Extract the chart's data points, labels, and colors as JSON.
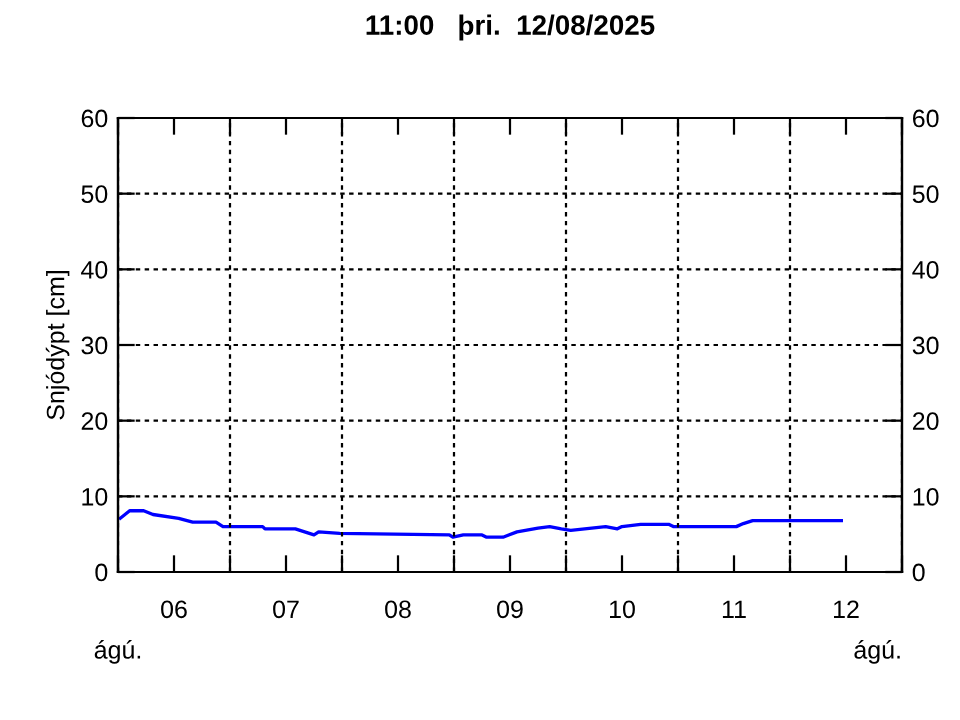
{
  "chart_data": {
    "type": "line",
    "title": "11:00   þri.  12/08/2025",
    "ylabel": "Snjódýpt [cm]",
    "annotations": [
      "ágú.",
      "ágú."
    ],
    "x": [
      "2025-08-06T00:30",
      "2025-08-06T02:30",
      "2025-08-06T05:30",
      "2025-08-06T07:30",
      "2025-08-06T13:00",
      "2025-08-06T16:00",
      "2025-08-06T21:00",
      "2025-08-06T22:30",
      "2025-08-07T07:00",
      "2025-08-07T07:30",
      "2025-08-07T14:00",
      "2025-08-07T18:00",
      "2025-08-07T19:00",
      "2025-08-07T23:30",
      "2025-08-08T23:00",
      "2025-08-08T23:45",
      "2025-08-09T02:00",
      "2025-08-09T06:00",
      "2025-08-09T07:00",
      "2025-08-09T10:30",
      "2025-08-09T13:30",
      "2025-08-09T18:00",
      "2025-08-09T20:30",
      "2025-08-09T23:00",
      "2025-08-10T01:00",
      "2025-08-10T04:00",
      "2025-08-10T08:30",
      "2025-08-10T11:00",
      "2025-08-10T12:00",
      "2025-08-10T16:00",
      "2025-08-10T22:00",
      "2025-08-10T23:00",
      "2025-08-11T12:30",
      "2025-08-11T14:00",
      "2025-08-11T16:00",
      "2025-08-12T11:00"
    ],
    "series": [
      {
        "color": "#0000ff",
        "values": [
          7.1,
          8.1,
          8.1,
          7.6,
          7.1,
          6.6,
          6.6,
          6.0,
          6.0,
          5.7,
          5.7,
          4.9,
          5.3,
          5.1,
          4.9,
          4.6,
          4.9,
          4.9,
          4.6,
          4.6,
          5.3,
          5.8,
          6.0,
          5.7,
          5.5,
          5.7,
          6.0,
          5.7,
          6.0,
          6.3,
          6.3,
          6.0,
          6.0,
          6.4,
          6.8,
          6.8
        ]
      }
    ],
    "xlim": [
      "2025-08-06T00:00",
      "2025-08-13T00:00"
    ],
    "xticks": [
      {
        "value": "2025-08-06T00:00",
        "label": null
      },
      {
        "value": "2025-08-06T12:00",
        "label": "06"
      },
      {
        "value": "2025-08-07T00:00",
        "label": null
      },
      {
        "value": "2025-08-07T12:00",
        "label": "07"
      },
      {
        "value": "2025-08-08T00:00",
        "label": null
      },
      {
        "value": "2025-08-08T12:00",
        "label": "08"
      },
      {
        "value": "2025-08-09T00:00",
        "label": null
      },
      {
        "value": "2025-08-09T12:00",
        "label": "09"
      },
      {
        "value": "2025-08-10T00:00",
        "label": null
      },
      {
        "value": "2025-08-10T12:00",
        "label": "10"
      },
      {
        "value": "2025-08-11T00:00",
        "label": null
      },
      {
        "value": "2025-08-11T12:00",
        "label": "11"
      },
      {
        "value": "2025-08-12T00:00",
        "label": null
      },
      {
        "value": "2025-08-12T12:00",
        "label": "12"
      },
      {
        "value": "2025-08-13T00:00",
        "label": null
      }
    ],
    "ylim": [
      0,
      60
    ],
    "yticks": [
      0,
      10,
      20,
      30,
      40,
      50,
      60
    ],
    "y2lim": [
      0,
      60
    ],
    "y2ticks": [
      0,
      10,
      20,
      30,
      40,
      50,
      60
    ],
    "grid": true,
    "line_style": "solid",
    "marker": "none"
  }
}
